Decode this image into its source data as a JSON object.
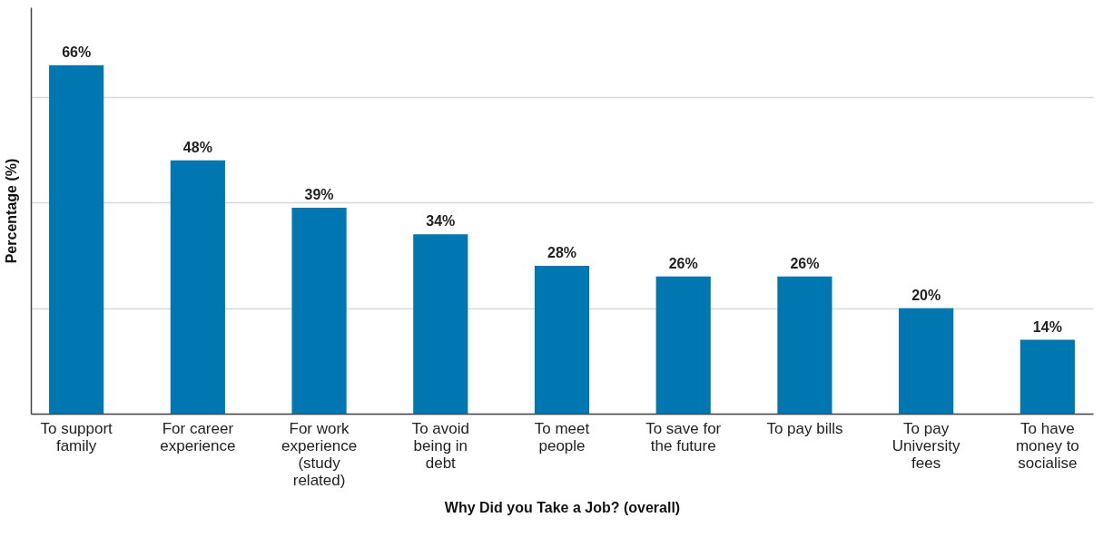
{
  "chart_data": {
    "type": "bar",
    "xlabel": "Why Did you Take a Job? (overall)",
    "ylabel": "Percentage (%)",
    "categories": [
      "To support family",
      "For career experience",
      "For work experience (study related)",
      "To avoid being in debt",
      "To meet people",
      "To save for the future",
      "To pay bills",
      "To pay University fees",
      "To have money to socialise"
    ],
    "values": [
      66,
      48,
      39,
      34,
      28,
      26,
      26,
      20,
      14
    ],
    "value_labels": [
      "66%",
      "48%",
      "39%",
      "34%",
      "28%",
      "26%",
      "26%",
      "20%",
      "14%"
    ],
    "color": "#0077b0",
    "ylim": [
      0,
      77
    ],
    "yticks": [
      {
        "value": 0,
        "label": null
      },
      {
        "value": 20,
        "label": null
      },
      {
        "value": 40,
        "label": null
      },
      {
        "value": 60,
        "label": null
      }
    ],
    "grid": "y",
    "tick_labels": "x"
  }
}
